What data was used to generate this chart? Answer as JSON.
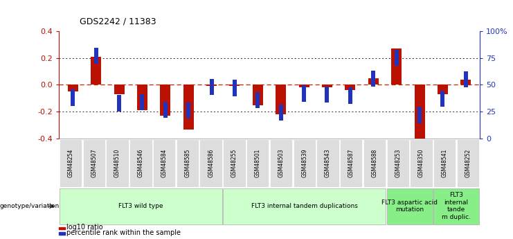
{
  "title": "GDS2242 / 11383",
  "samples": [
    "GSM48254",
    "GSM48507",
    "GSM48510",
    "GSM48546",
    "GSM48584",
    "GSM48585",
    "GSM48586",
    "GSM48255",
    "GSM48501",
    "GSM48503",
    "GSM48539",
    "GSM48543",
    "GSM48587",
    "GSM48588",
    "GSM48253",
    "GSM48350",
    "GSM48541",
    "GSM48252"
  ],
  "log10_ratio": [
    -0.05,
    0.21,
    -0.07,
    -0.19,
    -0.23,
    -0.33,
    -0.01,
    -0.01,
    -0.15,
    -0.22,
    -0.02,
    -0.02,
    -0.04,
    0.05,
    0.27,
    -0.44,
    -0.07,
    0.04
  ],
  "percentile_rank": [
    38,
    77,
    33,
    34,
    27,
    26,
    48,
    47,
    36,
    24,
    42,
    41,
    40,
    56,
    75,
    22,
    37,
    55
  ],
  "groups": [
    {
      "label": "FLT3 wild type",
      "start": 0,
      "end": 7,
      "color": "#ccffcc"
    },
    {
      "label": "FLT3 internal tandem duplications",
      "start": 7,
      "end": 14,
      "color": "#ccffcc"
    },
    {
      "label": "FLT3 aspartic acid\nmutation",
      "start": 14,
      "end": 16,
      "color": "#88ee88"
    },
    {
      "label": "FLT3\ninternal\ntande\nm duplic.",
      "start": 16,
      "end": 18,
      "color": "#88ee88"
    }
  ],
  "ylim_left": [
    -0.4,
    0.4
  ],
  "yticks_left": [
    -0.4,
    -0.2,
    0.0,
    0.2,
    0.4
  ],
  "yticks_right": [
    0,
    25,
    50,
    75,
    100
  ],
  "bar_color_red": "#bb1100",
  "bar_color_blue": "#2233bb",
  "grid_color": "#222222",
  "zero_line_color": "#cc2200",
  "spine_color": "#888888"
}
